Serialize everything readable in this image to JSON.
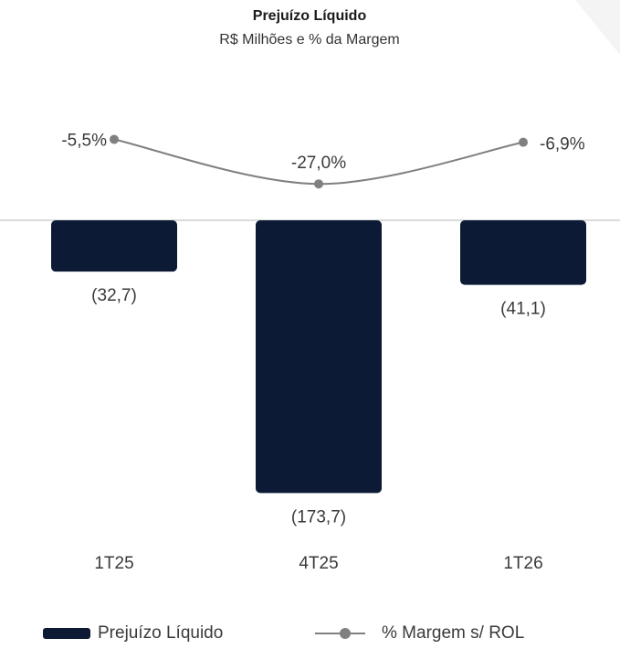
{
  "chart_data": {
    "type": "bar",
    "title": "Prejuízo Líquido",
    "subtitle": "R$ Milhões e % da Margem",
    "categories": [
      "1T25",
      "4T25",
      "1T26"
    ],
    "series": [
      {
        "name": "Prejuízo Líquido",
        "type": "bar",
        "color": "#0c1a36",
        "values": [
          -32.7,
          -173.7,
          -41.1
        ],
        "value_labels": [
          "(32,7)",
          "(173,7)",
          "(41,1)"
        ]
      },
      {
        "name": "% Margem s/ ROL",
        "type": "line",
        "axis": "y2",
        "color": "#808080",
        "values": [
          -5.5,
          -27.0,
          -6.9
        ],
        "value_labels": [
          "-5,5%",
          "-27,0%",
          "-6,9%"
        ]
      }
    ],
    "ylim": [
      -177,
      0
    ],
    "y2lim": [
      -30,
      0
    ],
    "legend": "bottom"
  }
}
